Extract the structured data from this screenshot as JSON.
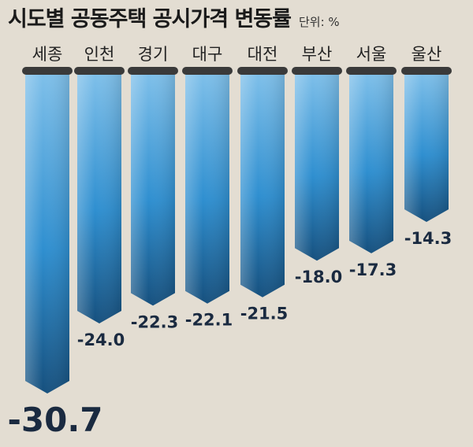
{
  "chart_data": {
    "type": "bar",
    "orientation": "vertical-down",
    "title": "시도별 공동주택 공시가격 변동률",
    "unit": "단위: %",
    "categories": [
      "세종",
      "인천",
      "경기",
      "대구",
      "대전",
      "부산",
      "서울",
      "울산"
    ],
    "values": [
      -30.7,
      -24.0,
      -22.3,
      -22.1,
      -21.5,
      -18.0,
      -17.3,
      -14.3
    ],
    "value_labels": [
      "-30.7",
      "-24.0",
      "-22.3",
      "-22.1",
      "-21.5",
      "-18.0",
      "-17.3",
      "-14.3"
    ],
    "ylim": [
      -32,
      0
    ],
    "grid": false,
    "legend": "none",
    "colors": {
      "bar_top": "#7fc0ea",
      "bar_mid": "#2f8fd0",
      "bar_bottom": "#16507e",
      "cap": "#3a3a3a",
      "background": "#e3ddd2"
    }
  }
}
